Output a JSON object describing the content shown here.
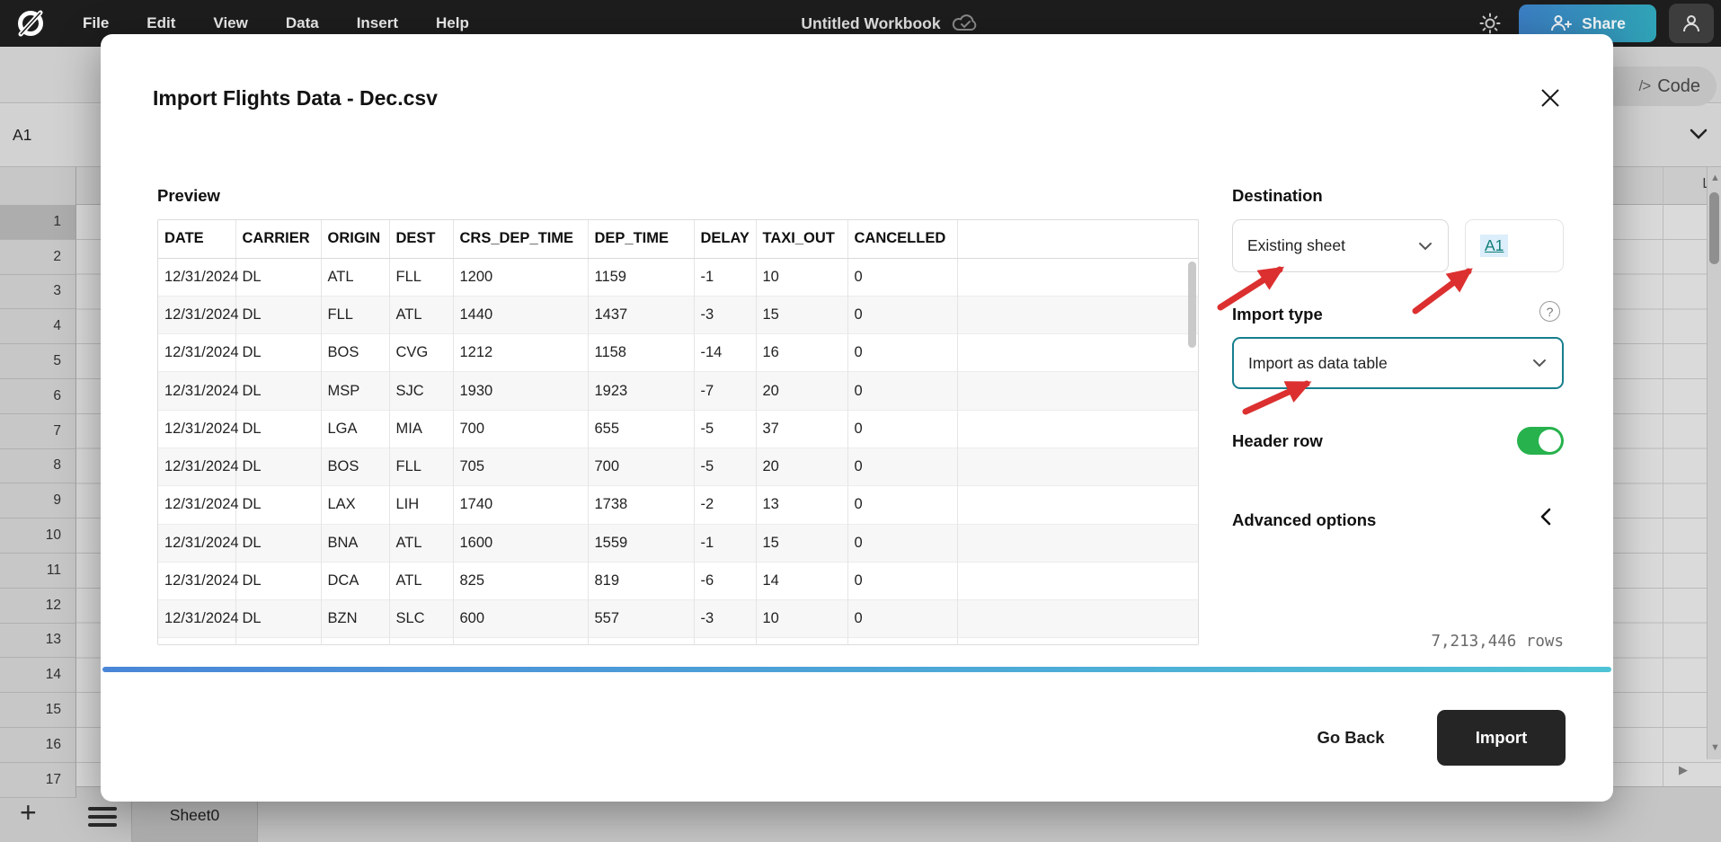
{
  "topbar": {
    "menus": [
      "File",
      "Edit",
      "View",
      "Data",
      "Insert",
      "Help"
    ],
    "workbook_title": "Untitled Workbook",
    "share_label": "Share"
  },
  "toolbar": {
    "cell_ref": "A1",
    "code_label": "Code",
    "code_icon": "/>"
  },
  "grid": {
    "row_numbers": [
      "1",
      "2",
      "3",
      "4",
      "5",
      "6",
      "7",
      "8",
      "9",
      "10",
      "11",
      "12",
      "13",
      "14",
      "15",
      "16",
      "17"
    ],
    "visible_column_label": "L"
  },
  "sheetbar": {
    "tab_label": "Sheet0"
  },
  "dialog": {
    "title": "Import Flights Data - Dec.csv",
    "preview_label": "Preview",
    "table": {
      "headers": [
        "DATE",
        "CARRIER",
        "ORIGIN",
        "DEST",
        "CRS_DEP_TIME",
        "DEP_TIME",
        "DELAY",
        "TAXI_OUT",
        "CANCELLED"
      ],
      "rows": [
        [
          "12/31/2024",
          "DL",
          "ATL",
          "FLL",
          "1200",
          "1159",
          "-1",
          "10",
          "0"
        ],
        [
          "12/31/2024",
          "DL",
          "FLL",
          "ATL",
          "1440",
          "1437",
          "-3",
          "15",
          "0"
        ],
        [
          "12/31/2024",
          "DL",
          "BOS",
          "CVG",
          "1212",
          "1158",
          "-14",
          "16",
          "0"
        ],
        [
          "12/31/2024",
          "DL",
          "MSP",
          "SJC",
          "1930",
          "1923",
          "-7",
          "20",
          "0"
        ],
        [
          "12/31/2024",
          "DL",
          "LGA",
          "MIA",
          "700",
          "655",
          "-5",
          "37",
          "0"
        ],
        [
          "12/31/2024",
          "DL",
          "BOS",
          "FLL",
          "705",
          "700",
          "-5",
          "20",
          "0"
        ],
        [
          "12/31/2024",
          "DL",
          "LAX",
          "LIH",
          "1740",
          "1738",
          "-2",
          "13",
          "0"
        ],
        [
          "12/31/2024",
          "DL",
          "BNA",
          "ATL",
          "1600",
          "1559",
          "-1",
          "15",
          "0"
        ],
        [
          "12/31/2024",
          "DL",
          "DCA",
          "ATL",
          "825",
          "819",
          "-6",
          "14",
          "0"
        ],
        [
          "12/31/2024",
          "DL",
          "BZN",
          "SLC",
          "600",
          "557",
          "-3",
          "10",
          "0"
        ]
      ]
    },
    "destination": {
      "label": "Destination",
      "select_value": "Existing sheet",
      "cell_link": "A1"
    },
    "import_type": {
      "label": "Import type",
      "select_value": "Import as data table",
      "help_glyph": "?"
    },
    "header_row": {
      "label": "Header row",
      "enabled": true
    },
    "advanced": {
      "label": "Advanced options"
    },
    "row_count": "7,213,446 rows",
    "go_back_label": "Go Back",
    "import_label": "Import"
  },
  "colors": {
    "accent_teal": "#177e8c",
    "toggle_green": "#27b24d",
    "arrow_red": "#dc3030",
    "cell_link": "#0f7f78",
    "progress_from": "#4a86d8",
    "progress_to": "#4fc3d6",
    "share_from": "#3b7fc4",
    "share_to": "#2fa3b5"
  }
}
